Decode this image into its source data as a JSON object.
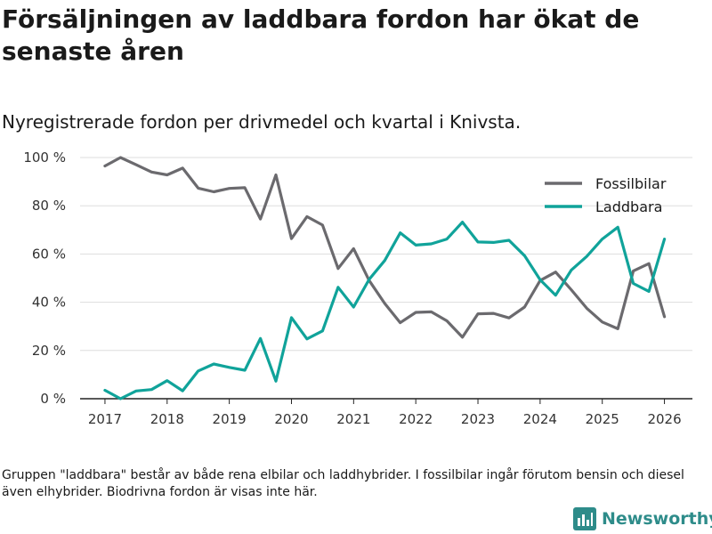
{
  "title": "Försäljningen av laddbara fordon har ökat de senaste åren",
  "subtitle": "Nyregistrerade fordon per drivmedel och kvartal i Knivsta.",
  "footnote": "Gruppen \"laddbara\" består av både rena elbilar och laddhybrider. I fossilbilar ingår förutom bensin och diesel även elhybrider. Biodrivna fordon är visas inte här.",
  "brand": {
    "name": "Newsworthy",
    "icon": "bar-chart-logo-icon",
    "color": "#2e8c8a"
  },
  "colors": {
    "fossil": "#6b6a6e",
    "laddbara": "#10a39a",
    "grid": "#dddddd",
    "axis": "#222222"
  },
  "chart_data": {
    "type": "line",
    "title": "Försäljningen av laddbara fordon har ökat de senaste åren",
    "subtitle": "Nyregistrerade fordon per drivmedel och kvartal i Knivsta.",
    "xlabel": "",
    "ylabel": "",
    "x_range": [
      2016.6,
      2026.45
    ],
    "ylim": [
      0,
      100
    ],
    "y_ticks": [
      0,
      20,
      40,
      60,
      80,
      100
    ],
    "y_tick_labels": [
      "0 %",
      "20 %",
      "40 %",
      "60 %",
      "80 %",
      "100 %"
    ],
    "x_ticks": [
      2017,
      2018,
      2019,
      2020,
      2021,
      2022,
      2023,
      2024,
      2025,
      2026
    ],
    "x_tick_labels": [
      "2017",
      "2018",
      "2019",
      "2020",
      "2021",
      "2022",
      "2023",
      "2024",
      "2025",
      "2026"
    ],
    "grid": true,
    "legend_position": "top-right",
    "x": [
      2017.0,
      2017.25,
      2017.5,
      2017.75,
      2018.0,
      2018.25,
      2018.5,
      2018.75,
      2019.0,
      2019.25,
      2019.5,
      2019.75,
      2020.0,
      2020.25,
      2020.5,
      2020.75,
      2021.0,
      2021.25,
      2021.5,
      2021.75,
      2022.0,
      2022.25,
      2022.5,
      2022.75,
      2023.0,
      2023.25,
      2023.5,
      2023.75,
      2024.0,
      2024.25,
      2024.5,
      2024.75,
      2025.0,
      2025.25,
      2025.5,
      2025.75,
      2026.0
    ],
    "series": [
      {
        "name": "Fossilbilar",
        "color": "#6b6a6e",
        "values": [
          96.5,
          100,
          97,
          94,
          92.8,
          95.6,
          87.3,
          85.8,
          87.2,
          87.5,
          74.5,
          92.8,
          66.4,
          75.5,
          72,
          54,
          62.2,
          49,
          39.5,
          31.5,
          35.8,
          36,
          32.3,
          25.5,
          35.2,
          35.4,
          33.5,
          38,
          49,
          52.5,
          45.2,
          37.5,
          31.8,
          29,
          53,
          56,
          34
        ]
      },
      {
        "name": "Laddbara",
        "color": "#10a39a",
        "values": [
          3.5,
          0,
          3.2,
          3.8,
          7.5,
          3.3,
          11.5,
          14.4,
          13,
          11.8,
          25,
          7.3,
          33.6,
          24.8,
          28.1,
          46.2,
          38,
          49.5,
          57.3,
          68.8,
          63.7,
          64.2,
          66.2,
          73.2,
          65,
          64.8,
          65.7,
          59.3,
          49.3,
          42.9,
          53.3,
          59,
          66.2,
          71.1,
          47.8,
          44.5,
          66.2
        ]
      }
    ]
  }
}
